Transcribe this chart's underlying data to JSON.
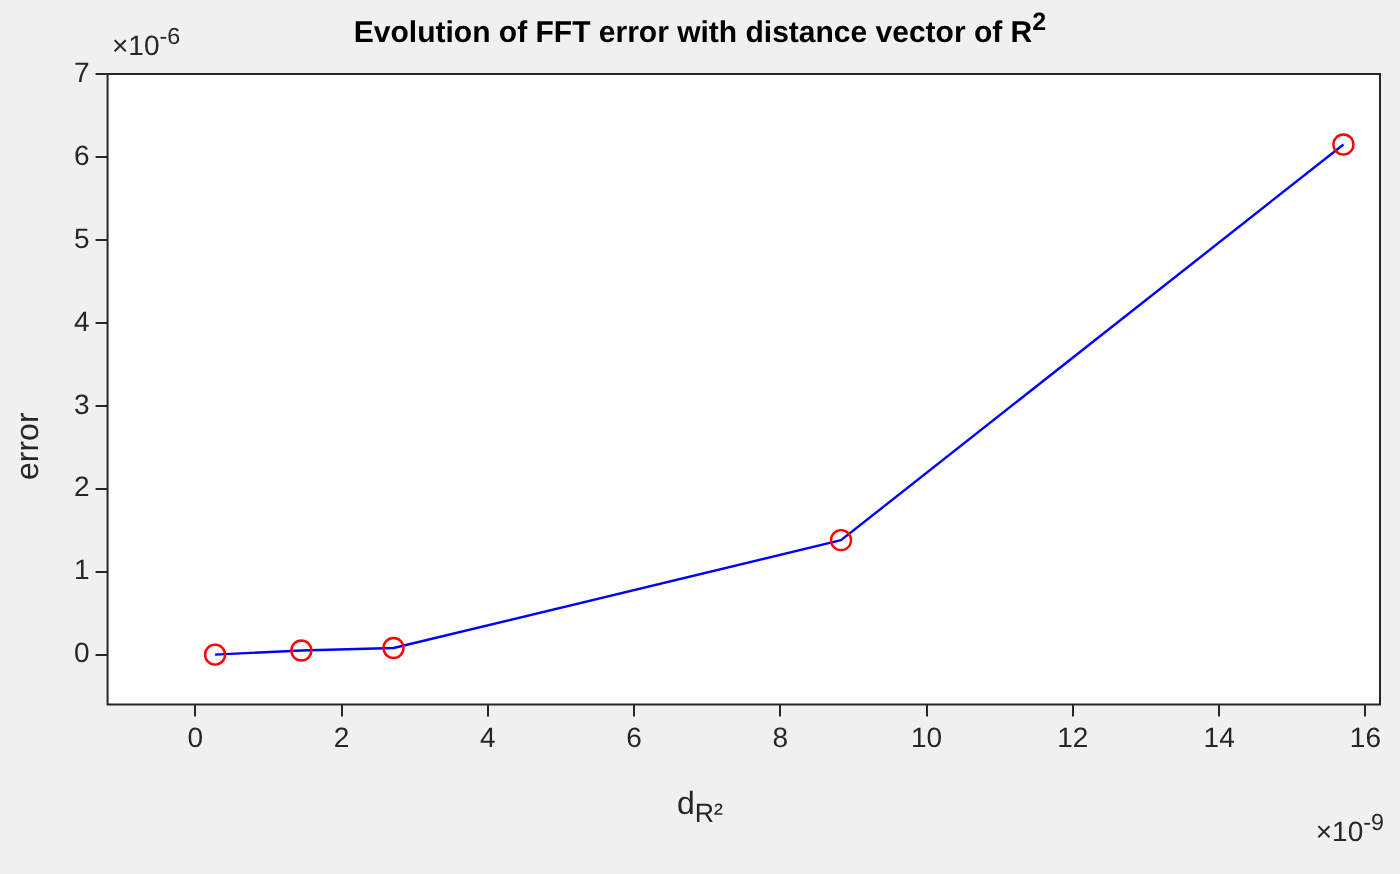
{
  "chart_data": {
    "type": "line",
    "title": "Evolution of FFT error with distance vector of R$^{2}$",
    "xlabel": "d$_{R²}$",
    "ylabel": "error",
    "annotations": [
      "×10$^{-6}$",
      "×10$^{-9}$"
    ],
    "x": [
      0.27,
      1.45,
      2.71,
      8.83,
      15.7
    ],
    "series": [
      {
        "color": "#0000ff",
        "marker": "none",
        "values": [
          0,
          0.05,
          0.08,
          1.38,
          6.15
        ]
      },
      {
        "type": "scatter",
        "color": "#ff0000",
        "marker": "circle",
        "values": [
          0,
          0.05,
          0.08,
          1.38,
          6.15
        ]
      }
    ],
    "xlim": [
      -1.2,
      16.2
    ],
    "xticks": [
      0,
      2,
      4,
      6,
      8,
      10,
      12,
      14,
      16
    ],
    "ylim": [
      -0.6,
      7
    ],
    "yticks": [
      0,
      1,
      2,
      3,
      4,
      5,
      6,
      7
    ],
    "grid": false,
    "legend": false
  }
}
